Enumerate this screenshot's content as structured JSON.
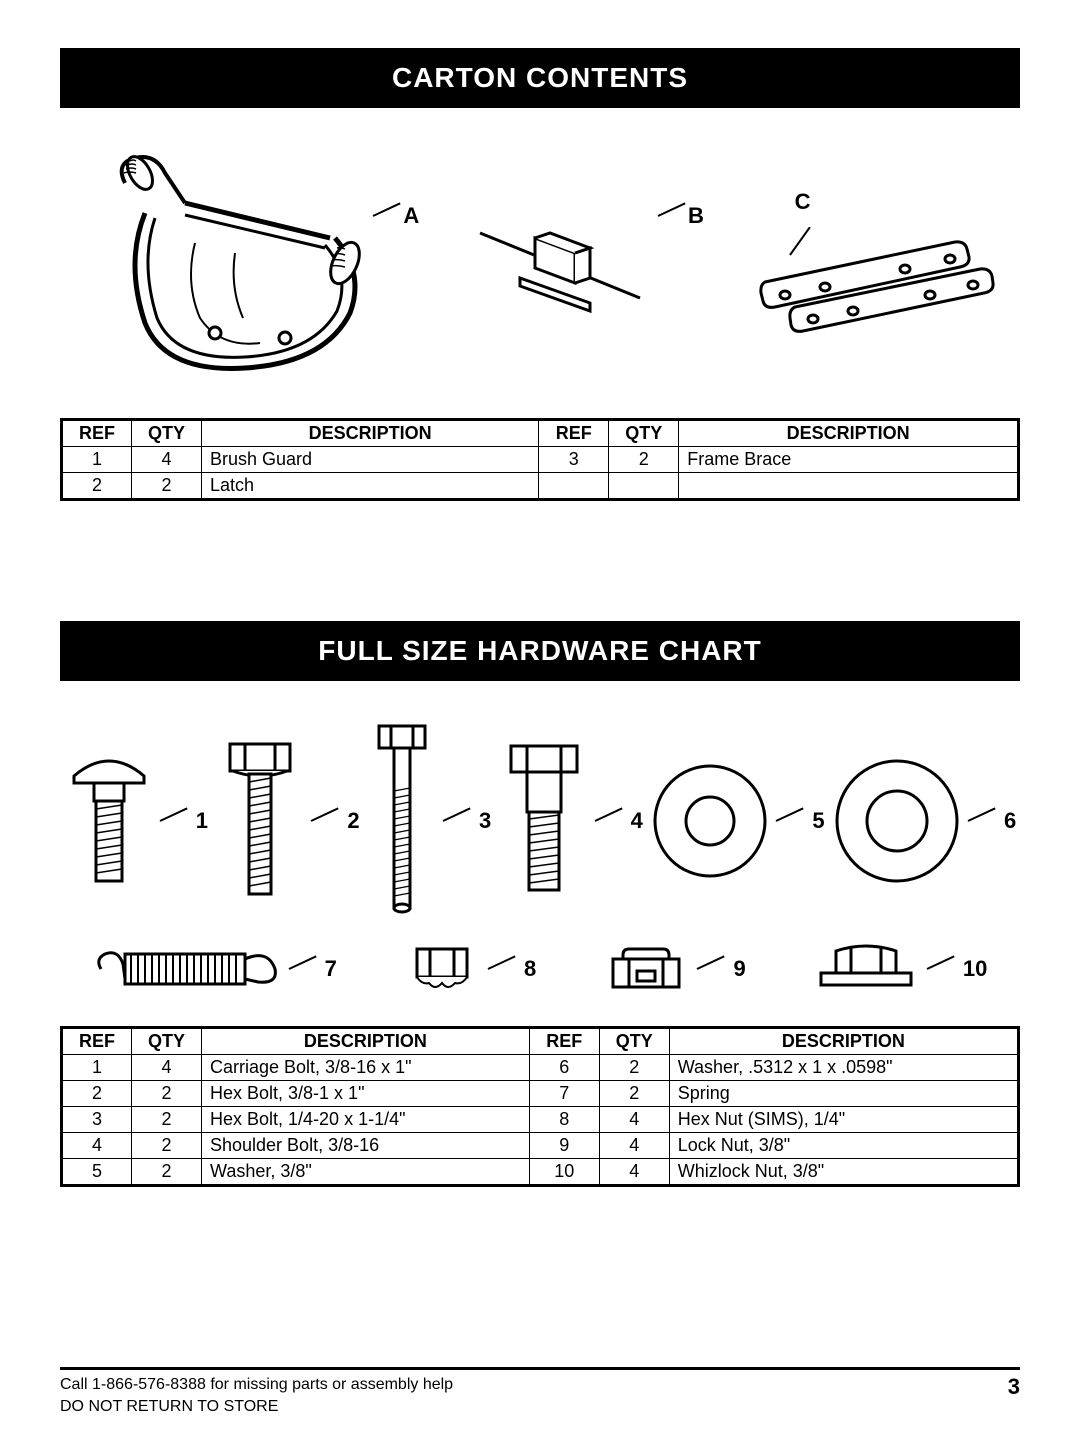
{
  "section1": {
    "title": "CARTON CONTENTS",
    "illus_labels": {
      "a": "A",
      "b": "B",
      "c": "C"
    },
    "table": {
      "headers": [
        "REF",
        "QTY",
        "DESCRIPTION",
        "REF",
        "QTY",
        "DESCRIPTION"
      ],
      "rows": [
        [
          "1",
          "4",
          "Brush Guard",
          "3",
          "2",
          "Frame Brace"
        ],
        [
          "2",
          "2",
          "Latch",
          "",
          "",
          ""
        ]
      ]
    }
  },
  "section2": {
    "title": "FULL SIZE HARDWARE CHART",
    "hw_labels": [
      "1",
      "2",
      "3",
      "4",
      "5",
      "6",
      "7",
      "8",
      "9",
      "10"
    ],
    "table": {
      "headers": [
        "REF",
        "QTY",
        "DESCRIPTION",
        "REF",
        "QTY",
        "DESCRIPTION"
      ],
      "rows": [
        [
          "1",
          "4",
          "Carriage Bolt, 3/8-16 x 1\"",
          "6",
          "2",
          "Washer, .5312 x 1 x .0598\""
        ],
        [
          "2",
          "2",
          "Hex Bolt, 3/8-1 x 1\"",
          "7",
          "2",
          "Spring"
        ],
        [
          "3",
          "2",
          "Hex Bolt, 1/4-20 x 1-1/4\"",
          "8",
          "4",
          "Hex Nut (SIMS), 1/4\""
        ],
        [
          "4",
          "2",
          "Shoulder Bolt, 3/8-16",
          "9",
          "4",
          "Lock Nut, 3/8\""
        ],
        [
          "5",
          "2",
          "Washer, 3/8\"",
          "10",
          "4",
          "Whizlock Nut, 3/8\""
        ]
      ]
    }
  },
  "footer": {
    "line1": "Call 1-866-576-8388 for missing parts or assembly help",
    "line2": "DO NOT RETURN TO STORE",
    "page_num": "3"
  },
  "colors": {
    "header_bg": "#000000",
    "header_fg": "#ffffff",
    "border": "#000000",
    "page_bg": "#ffffff"
  }
}
